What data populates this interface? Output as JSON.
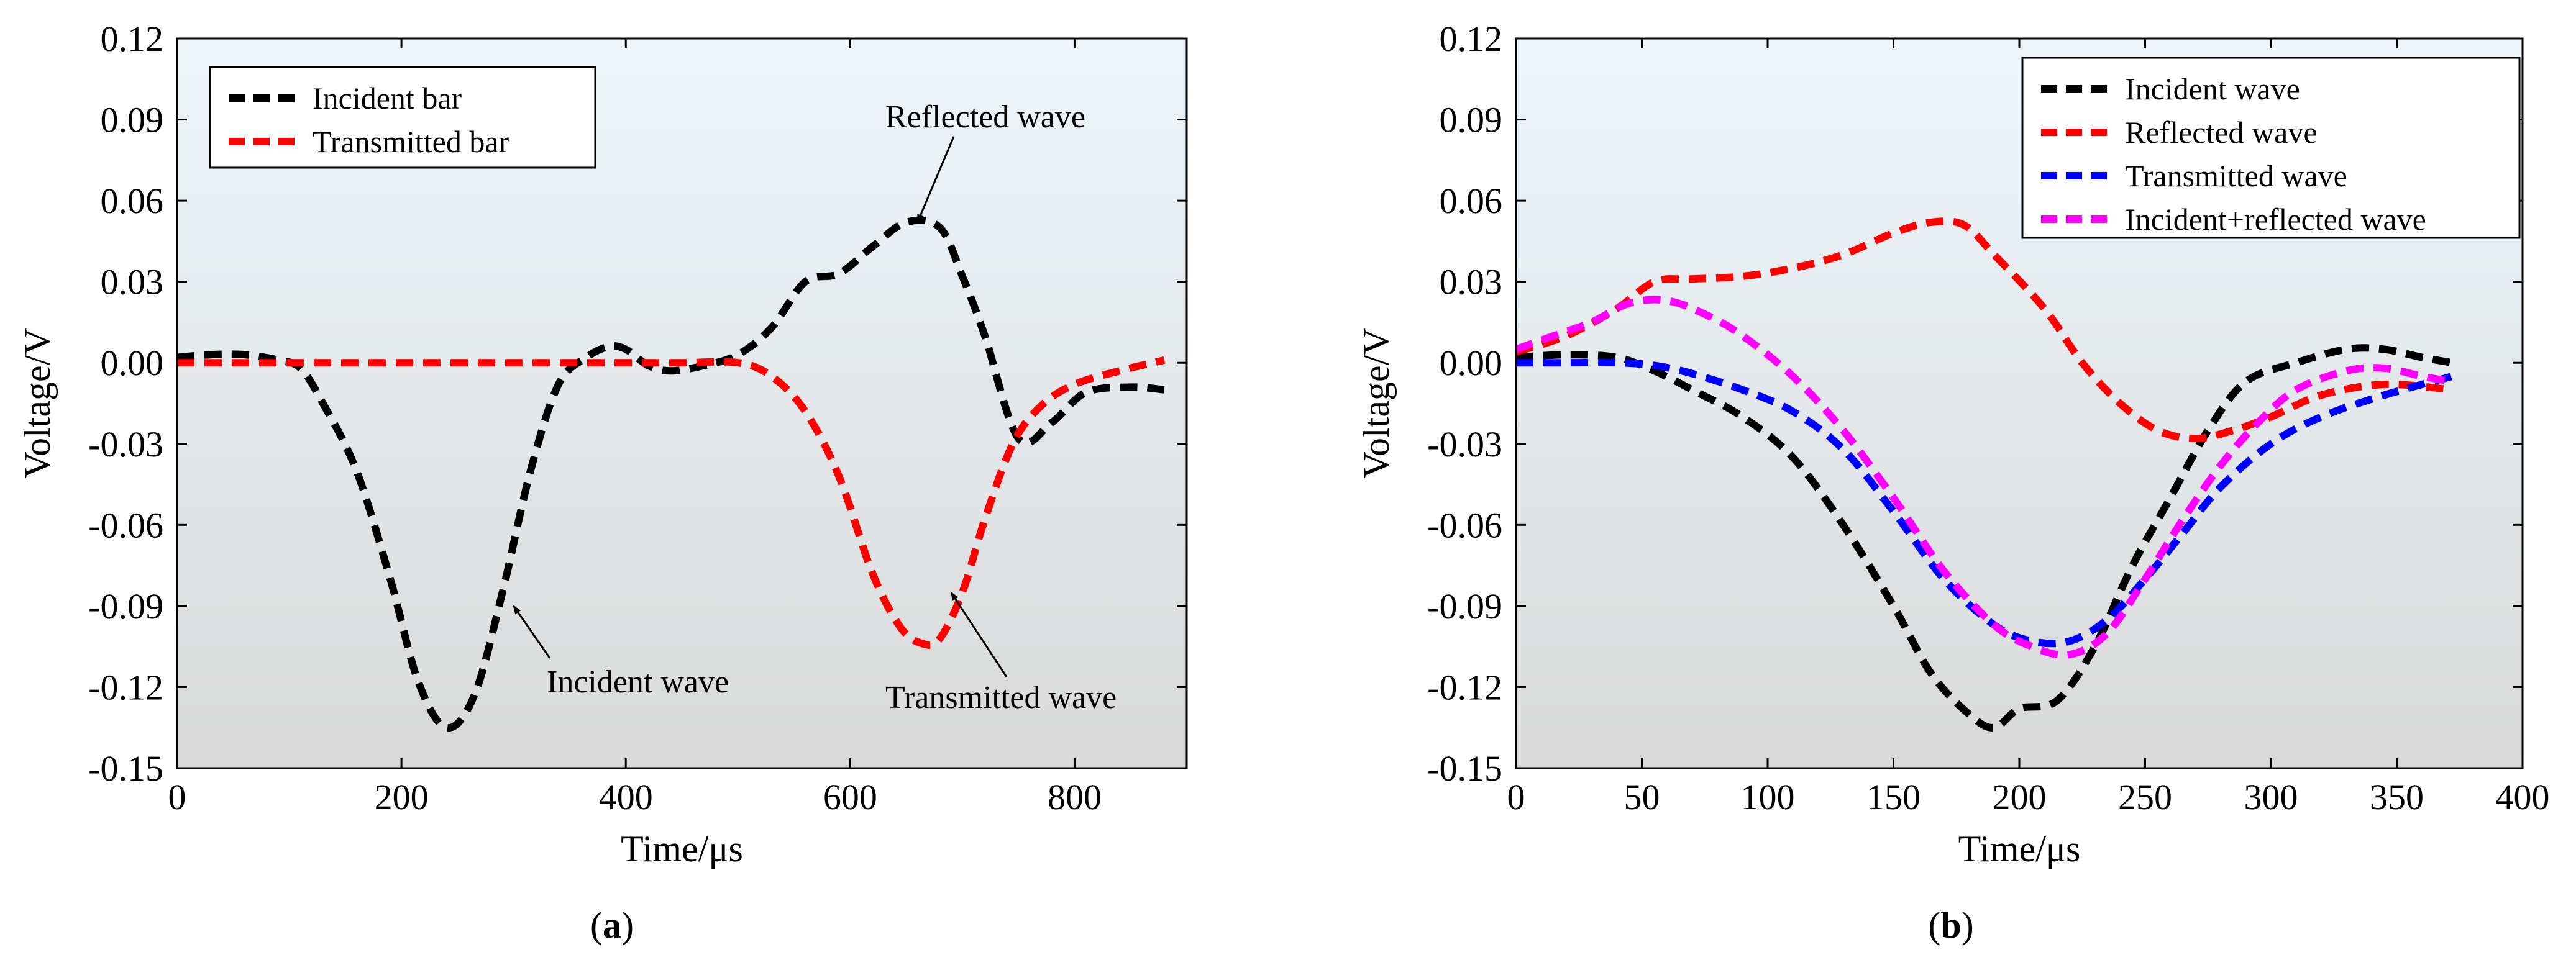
{
  "chart_data": [
    {
      "type": "line",
      "panel_label": "(a)",
      "panel_letter": "a",
      "xlabel": "Time/μs",
      "ylabel": "Voltage/V",
      "xlim": [
        0,
        900
      ],
      "ylim": [
        -0.15,
        0.12
      ],
      "x_ticks": [
        0,
        200,
        400,
        600,
        800
      ],
      "y_ticks": [
        0.12,
        0.09,
        0.06,
        0.03,
        0.0,
        -0.03,
        -0.06,
        -0.09,
        -0.12,
        -0.15
      ],
      "x_tick_labels": [
        "0",
        "200",
        "400",
        "600",
        "800"
      ],
      "y_tick_labels": [
        "0.12",
        "0.09",
        "0.06",
        "0.03",
        "0.00",
        "-0.03",
        "-0.06",
        "-0.09",
        "-0.12",
        "-0.15"
      ],
      "grid": false,
      "legend_position": "top-left",
      "series": [
        {
          "name": "Incident bar",
          "color": "#000000",
          "style": "dashed",
          "x": [
            0,
            30,
            60,
            90,
            110,
            130,
            160,
            190,
            215,
            240,
            265,
            290,
            315,
            340,
            365,
            385,
            400,
            420,
            440,
            470,
            500,
            530,
            560,
            590,
            620,
            650,
            680,
            700,
            720,
            750,
            780,
            810,
            850,
            880
          ],
          "y": [
            0.002,
            0.003,
            0.003,
            0.001,
            -0.002,
            -0.015,
            -0.04,
            -0.08,
            -0.118,
            -0.135,
            -0.123,
            -0.085,
            -0.04,
            -0.008,
            0.002,
            0.006,
            0.005,
            -0.001,
            -0.003,
            -0.001,
            0.003,
            0.013,
            0.03,
            0.033,
            0.043,
            0.052,
            0.05,
            0.032,
            0.01,
            -0.028,
            -0.022,
            -0.011,
            -0.009,
            -0.01
          ]
        },
        {
          "name": "Transmitted bar",
          "color": "#ff0000",
          "style": "dashed",
          "x": [
            0,
            100,
            200,
            300,
            400,
            450,
            500,
            530,
            560,
            590,
            620,
            645,
            665,
            680,
            700,
            720,
            745,
            770,
            800,
            840,
            880
          ],
          "y": [
            0,
            0,
            0,
            0,
            0,
            0,
            0,
            -0.005,
            -0.018,
            -0.042,
            -0.078,
            -0.098,
            -0.104,
            -0.102,
            -0.085,
            -0.058,
            -0.03,
            -0.016,
            -0.008,
            -0.003,
            0.001
          ]
        }
      ],
      "annotations": [
        {
          "text": "Reflected wave",
          "target_x": 660,
          "target_y": 0.052
        },
        {
          "text": "Incident wave",
          "target_x": 300,
          "target_y": -0.09
        },
        {
          "text": "Transmitted wave",
          "target_x": 690,
          "target_y": -0.085
        }
      ]
    },
    {
      "type": "line",
      "panel_label": "(b)",
      "panel_letter": "b",
      "xlabel": "Time/μs",
      "ylabel": "Voltage/V",
      "xlim": [
        0,
        400
      ],
      "ylim": [
        -0.15,
        0.12
      ],
      "x_ticks": [
        0,
        50,
        100,
        150,
        200,
        250,
        300,
        350,
        400
      ],
      "y_ticks": [
        0.12,
        0.09,
        0.06,
        0.03,
        0.0,
        -0.03,
        -0.06,
        -0.09,
        -0.12,
        -0.15
      ],
      "x_tick_labels": [
        "0",
        "50",
        "100",
        "150",
        "200",
        "250",
        "300",
        "350",
        "400"
      ],
      "y_tick_labels": [
        "0.12",
        "0.09",
        "0.06",
        "0.03",
        "0.00",
        "-0.03",
        "-0.06",
        "-0.09",
        "-0.12",
        "-0.15"
      ],
      "grid": false,
      "legend_position": "top-right",
      "series": [
        {
          "name": "Incident wave",
          "color": "#000000",
          "style": "dashed",
          "x": [
            0,
            20,
            40,
            55,
            70,
            90,
            110,
            130,
            150,
            165,
            180,
            190,
            200,
            215,
            230,
            245,
            260,
            275,
            290,
            310,
            330,
            345,
            360,
            372
          ],
          "y": [
            0.002,
            0.003,
            0.002,
            -0.003,
            -0.01,
            -0.02,
            -0.035,
            -0.06,
            -0.09,
            -0.115,
            -0.13,
            -0.135,
            -0.128,
            -0.125,
            -0.105,
            -0.075,
            -0.05,
            -0.025,
            -0.007,
            0.0,
            0.005,
            0.005,
            0.002,
            0.0
          ]
        },
        {
          "name": "Reflected wave",
          "color": "#ff0000",
          "style": "dashed",
          "x": [
            0,
            20,
            40,
            55,
            70,
            90,
            110,
            130,
            150,
            165,
            178,
            190,
            210,
            225,
            240,
            255,
            270,
            285,
            300,
            320,
            345,
            372
          ],
          "y": [
            0.004,
            0.01,
            0.02,
            0.03,
            0.031,
            0.032,
            0.035,
            0.04,
            0.048,
            0.052,
            0.051,
            0.04,
            0.02,
            0.0,
            -0.015,
            -0.025,
            -0.028,
            -0.025,
            -0.02,
            -0.012,
            -0.008,
            -0.01
          ]
        },
        {
          "name": "Transmitted wave",
          "color": "#0000ff",
          "style": "dashed",
          "x": [
            0,
            20,
            40,
            55,
            70,
            90,
            110,
            130,
            150,
            170,
            190,
            205,
            220,
            235,
            250,
            265,
            280,
            300,
            320,
            345,
            372
          ],
          "y": [
            0,
            0,
            0,
            -0.001,
            -0.004,
            -0.01,
            -0.018,
            -0.032,
            -0.055,
            -0.08,
            -0.097,
            -0.103,
            -0.103,
            -0.095,
            -0.08,
            -0.063,
            -0.046,
            -0.03,
            -0.02,
            -0.012,
            -0.005
          ]
        },
        {
          "name": "Incident+reflected wave",
          "color": "#ff00ff",
          "style": "dashed",
          "x": [
            0,
            15,
            30,
            45,
            60,
            75,
            90,
            110,
            130,
            150,
            170,
            190,
            205,
            220,
            235,
            250,
            265,
            280,
            295,
            310,
            330,
            345,
            360,
            372
          ],
          "y": [
            0.005,
            0.01,
            0.015,
            0.022,
            0.023,
            0.018,
            0.01,
            -0.005,
            -0.025,
            -0.05,
            -0.077,
            -0.097,
            -0.105,
            -0.108,
            -0.1,
            -0.08,
            -0.058,
            -0.038,
            -0.022,
            -0.01,
            -0.003,
            -0.002,
            -0.005,
            -0.007
          ]
        }
      ],
      "annotations": []
    }
  ]
}
